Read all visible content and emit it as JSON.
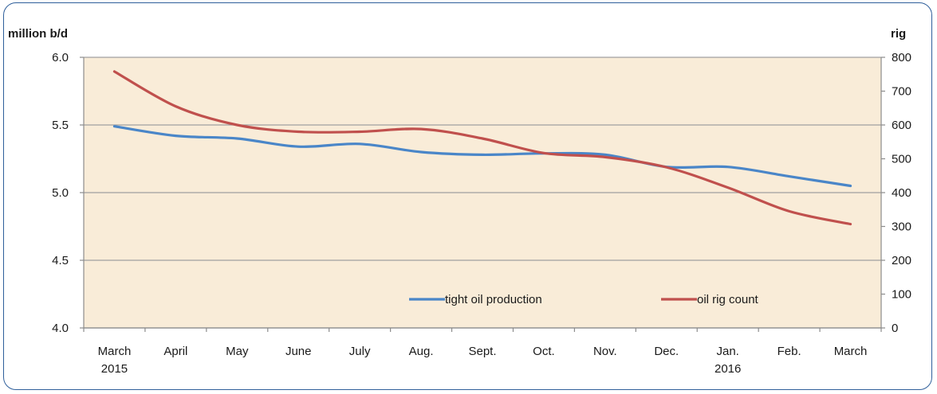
{
  "chart_data": {
    "type": "line",
    "title": "",
    "categories": [
      "March 2015",
      "April",
      "May",
      "June",
      "July",
      "Aug.",
      "Sept.",
      "Oct.",
      "Nov.",
      "Dec.",
      "Jan. 2016",
      "Feb.",
      "March"
    ],
    "x_tick_labels": [
      [
        "March",
        "2015"
      ],
      [
        "April"
      ],
      [
        "May"
      ],
      [
        "June"
      ],
      [
        "July"
      ],
      [
        "Aug."
      ],
      [
        "Sept."
      ],
      [
        "Oct."
      ],
      [
        "Nov."
      ],
      [
        "Dec."
      ],
      [
        "Jan.",
        "2016"
      ],
      [
        "Feb."
      ],
      [
        "March"
      ]
    ],
    "y_left": {
      "label": "million b/d",
      "lim": [
        4.0,
        6.0
      ],
      "ticks": [
        "4.0",
        "4.5",
        "5.0",
        "5.5",
        "6.0"
      ]
    },
    "y_right": {
      "label": "rig",
      "lim": [
        0,
        800
      ],
      "ticks": [
        "0",
        "100",
        "200",
        "300",
        "400",
        "500",
        "600",
        "700",
        "800"
      ]
    },
    "series": [
      {
        "name": "tight oil production",
        "axis": "left",
        "color": "#4a86c8",
        "values": [
          5.49,
          5.42,
          5.4,
          5.34,
          5.36,
          5.3,
          5.28,
          5.29,
          5.28,
          5.19,
          5.19,
          5.12,
          5.05
        ]
      },
      {
        "name": "oil rig count",
        "axis": "right",
        "color": "#c0504d",
        "values": [
          758,
          655,
          600,
          580,
          580,
          588,
          560,
          517,
          505,
          475,
          415,
          345,
          307
        ]
      }
    ],
    "gridlines": "horizontal",
    "plot_background": "#f9ecd8",
    "legend_position": "bottom-right inside plot"
  }
}
